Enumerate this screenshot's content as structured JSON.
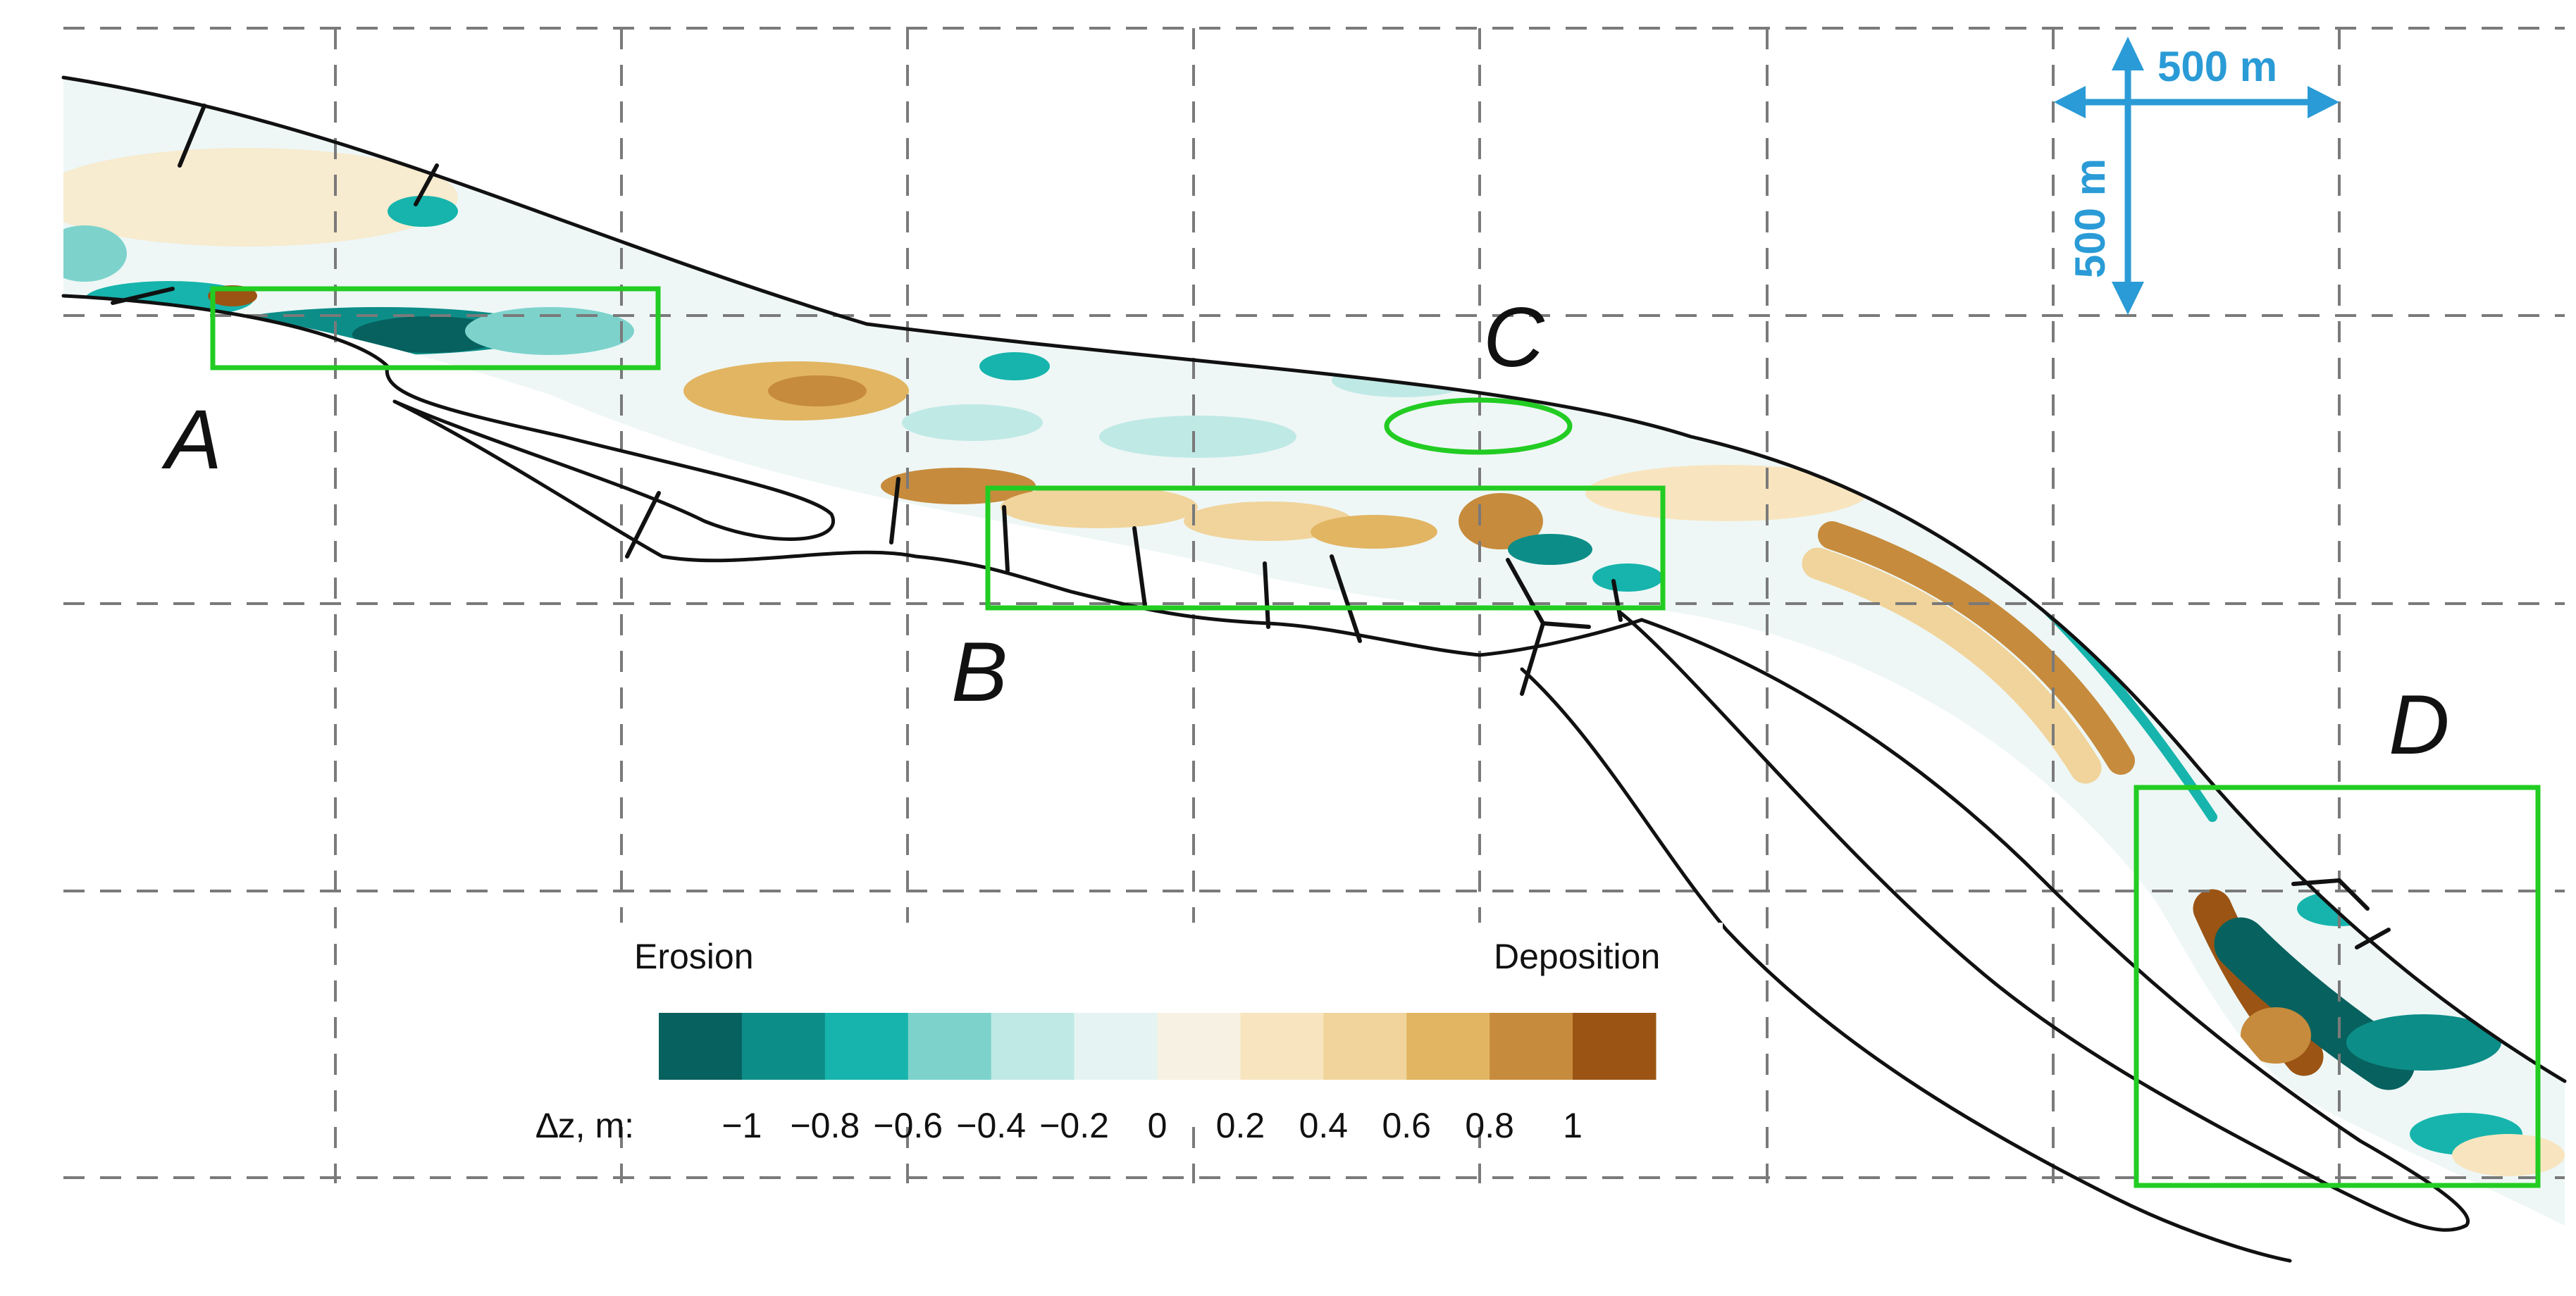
{
  "map": {
    "area_labels": [
      "A",
      "B",
      "C",
      "D"
    ],
    "scale_bar": {
      "horizontal_label": "500 m",
      "vertical_label": "500 m",
      "color": "#2a9bd6"
    },
    "highlight_color": "#22cc22",
    "legend": {
      "erosion_label": "Erosion",
      "deposition_label": "Deposition",
      "axis_label": "∆z, m:",
      "ticks": [
        "−1",
        "−0.8",
        "−0.6",
        "−0.4",
        "−0.2",
        "0",
        "0.2",
        "0.4",
        "0.6",
        "0.8",
        "1"
      ],
      "colors": [
        "#07615e",
        "#0c8d88",
        "#16b4ac",
        "#7dd3cc",
        "#bfe9e5",
        "#e5f4f3",
        "#f7f1e3",
        "#f8e5bf",
        "#f1d49b",
        "#e2b562",
        "#c68b3c",
        "#9b5414"
      ]
    }
  }
}
